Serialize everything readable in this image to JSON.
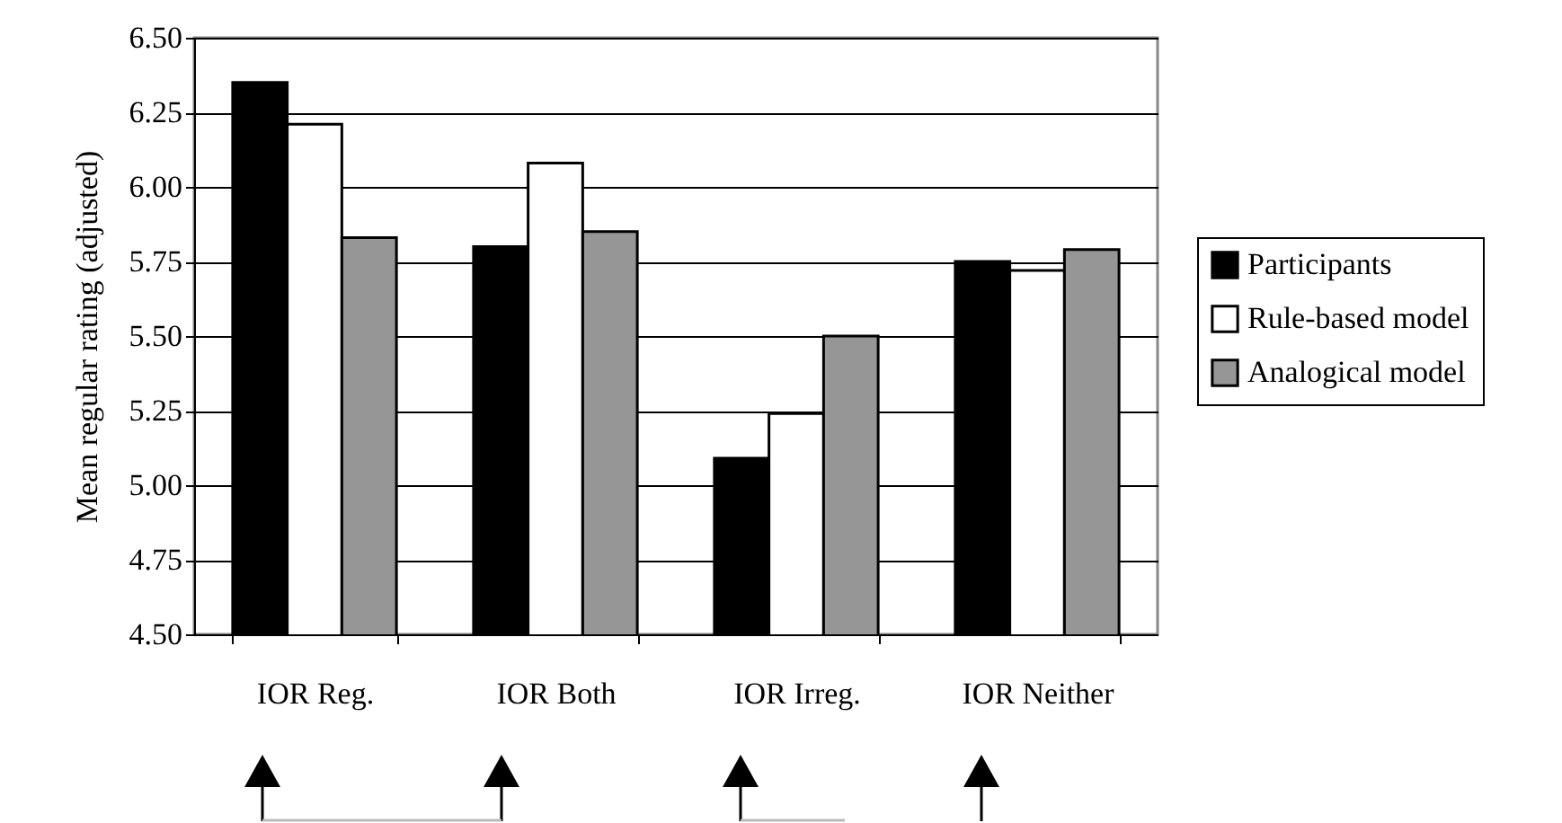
{
  "chart_data": {
    "type": "bar",
    "ylabel": "Mean regular rating (adjusted)",
    "categories": [
      "IOR Reg.",
      "IOR Both",
      "IOR Irreg.",
      "IOR Neither"
    ],
    "series": [
      {
        "name": "Participants",
        "color": "#000000",
        "values": [
          6.35,
          5.8,
          5.09,
          5.75
        ]
      },
      {
        "name": "Rule-based model",
        "color": "#ffffff",
        "values": [
          6.21,
          6.08,
          5.24,
          5.72
        ]
      },
      {
        "name": "Analogical model",
        "color": "#969696",
        "values": [
          5.83,
          5.85,
          5.5,
          5.79
        ]
      }
    ],
    "ylim": [
      4.5,
      6.5
    ],
    "yticks": [
      {
        "value": 4.5,
        "label": "4.50"
      },
      4.75,
      {
        "value": 5,
        "label": "5.00"
      },
      5.25,
      {
        "value": 5.5,
        "label": "5.50"
      },
      5.75,
      {
        "value": 6,
        "label": "6.00"
      },
      6.25,
      {
        "value": 6.5,
        "label": "6.50"
      }
    ],
    "grid": "y",
    "legend": "right"
  }
}
